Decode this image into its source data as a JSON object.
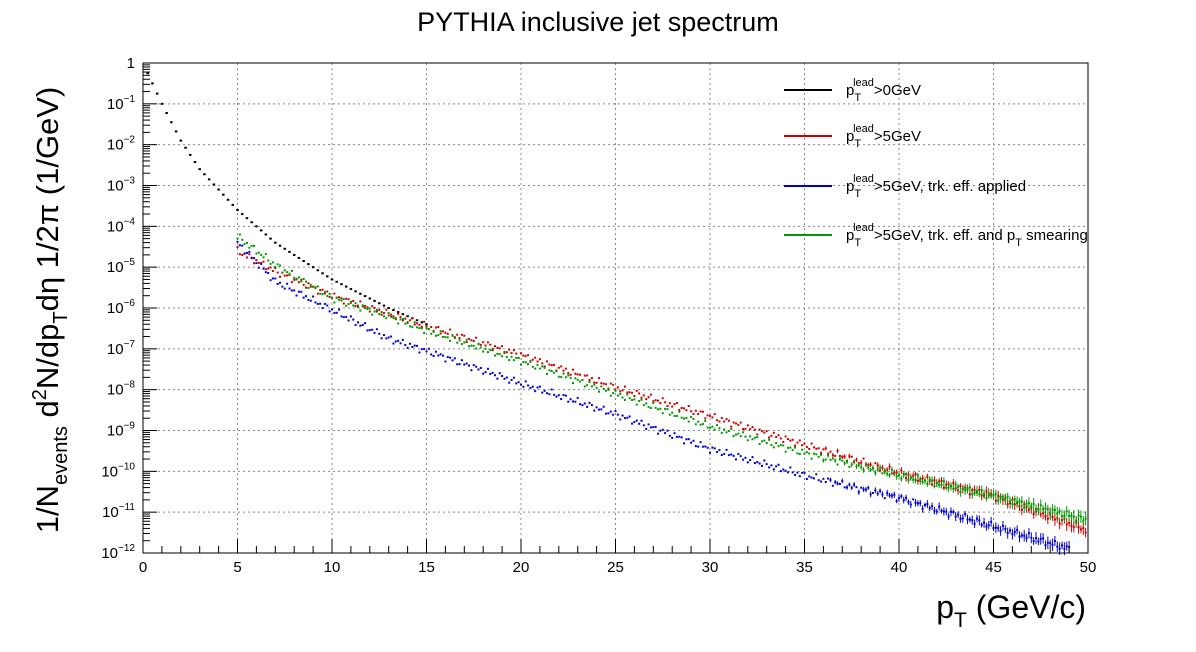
{
  "chart_data": {
    "type": "scatter",
    "title": "PYTHIA inclusive jet spectrum",
    "xlabel": {
      "main": "p",
      "sub": "T",
      "rest": " (GeV/c)"
    },
    "ylabel": {
      "p1": "1/N",
      "s1": "events",
      "p2": " d",
      "s2": "2",
      "p3": "N/dp",
      "s3": "T",
      "p4": "dη 1/2π (1/GeV)"
    },
    "xlim": [
      0,
      50
    ],
    "ylim_log10": [
      -12,
      0
    ],
    "x_ticks": [
      0,
      5,
      10,
      15,
      20,
      25,
      30,
      35,
      40,
      45,
      50
    ],
    "x_tick_labels": [
      "0",
      "5",
      "10",
      "15",
      "20",
      "25",
      "30",
      "35",
      "40",
      "45",
      "50"
    ],
    "y_tick_labels": [
      {
        "base": "1",
        "exp": ""
      },
      {
        "base": "10",
        "exp": "−1"
      },
      {
        "base": "10",
        "exp": "−2"
      },
      {
        "base": "10",
        "exp": "−3"
      },
      {
        "base": "10",
        "exp": "−4"
      },
      {
        "base": "10",
        "exp": "−5"
      },
      {
        "base": "10",
        "exp": "−6"
      },
      {
        "base": "10",
        "exp": "−7"
      },
      {
        "base": "10",
        "exp": "−8"
      },
      {
        "base": "10",
        "exp": "−9"
      },
      {
        "base": "10",
        "exp": "−10"
      },
      {
        "base": "10",
        "exp": "−11"
      },
      {
        "base": "10",
        "exp": "−12"
      }
    ],
    "grid": true,
    "legend_position": "top-right",
    "series": [
      {
        "name": "pT lead > 0 GeV",
        "color": "#000000",
        "x_start": 0.25,
        "x_end": 15.0,
        "anchors_x": [
          0.25,
          1,
          2,
          3,
          5,
          7,
          10,
          13,
          15
        ],
        "anchors_log10y": [
          -0.25,
          -1.0,
          -1.9,
          -2.6,
          -3.6,
          -4.4,
          -5.3,
          -6.0,
          -6.4
        ]
      },
      {
        "name": "pT lead > 5 GeV",
        "color": "#cc0000",
        "x_start": 5.0,
        "x_end": 49.9,
        "anchors_x": [
          5,
          7,
          10,
          13,
          15,
          20,
          25,
          30,
          35,
          40,
          45,
          50
        ],
        "anchors_log10y": [
          -4.6,
          -5.1,
          -5.7,
          -6.15,
          -6.45,
          -7.15,
          -7.95,
          -8.65,
          -9.35,
          -10.05,
          -10.6,
          -11.45
        ]
      },
      {
        "name": "pT lead > 5 GeV, trk. eff. applied",
        "color": "#0000cc",
        "x_start": 5.0,
        "x_end": 49.0,
        "anchors_x": [
          5,
          7,
          10,
          13,
          15,
          20,
          25,
          30,
          35,
          40,
          45,
          49
        ],
        "anchors_log10y": [
          -4.4,
          -5.35,
          -6.05,
          -6.75,
          -7.05,
          -7.85,
          -8.6,
          -9.45,
          -10.1,
          -10.65,
          -11.35,
          -11.9
        ]
      },
      {
        "name": "pT lead > 5 GeV, trk. eff. and pT smearing",
        "color": "#009900",
        "x_start": 5.0,
        "x_end": 49.9,
        "anchors_x": [
          5,
          7,
          10,
          13,
          15,
          20,
          25,
          30,
          35,
          40,
          45,
          50
        ],
        "anchors_log10y": [
          -4.25,
          -4.95,
          -5.75,
          -6.2,
          -6.55,
          -7.3,
          -8.1,
          -8.9,
          -9.55,
          -10.1,
          -10.6,
          -11.2
        ]
      }
    ],
    "legend": [
      {
        "p": "p",
        "sup": "lead",
        "sub": "T",
        "text": ">0GeV",
        "color": "#000000"
      },
      {
        "p": "p",
        "sup": "lead",
        "sub": "T",
        "text": ">5GeV",
        "color": "#cc0000"
      },
      {
        "p": "p",
        "sup": "lead",
        "sub": "T",
        "text": ">5GeV, trk. eff. applied",
        "color": "#0000cc"
      },
      {
        "p": "p",
        "sup": "lead",
        "sub": "T",
        "text": ">5GeV, trk. eff. and p",
        "sub2": "T",
        "text2": " smearing",
        "color": "#009900"
      }
    ]
  }
}
